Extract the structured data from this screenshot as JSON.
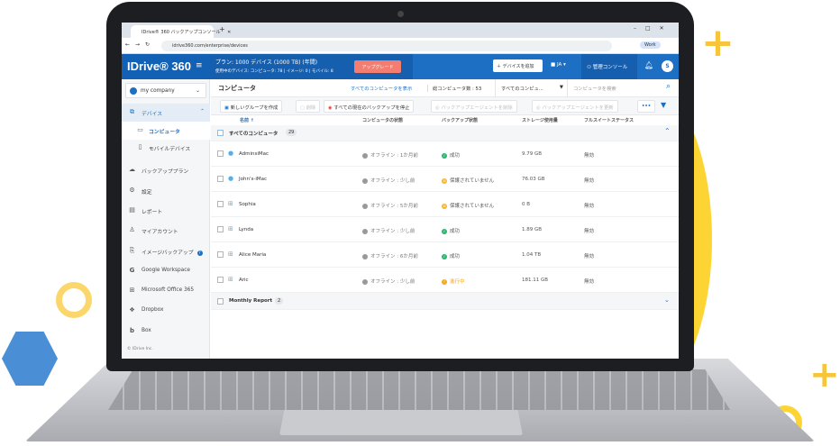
{
  "browser": {
    "tab_title": "IDrive® 360 バックアップコンソール",
    "url": "idrive360.com/enterprise/devices",
    "profile": "Work"
  },
  "header": {
    "logo": "IDrive® 360",
    "plan": "プラン: 1000 デバイス (1000 TB) (年間)",
    "usage": "使用中のデバイス: コンピュータ: 78 | イメージ: 0 | モバイル: 8",
    "upgrade": "アップグレード",
    "add_device": "デバイスを追加",
    "lang": "JA",
    "console": "管理コンソール",
    "avatar": "S"
  },
  "sidebar": {
    "company": "my company",
    "items": [
      {
        "label": "デバイス",
        "icon": "devices-icon"
      },
      {
        "label": "コンピュータ",
        "icon": "monitor-icon"
      },
      {
        "label": "モバイルデバイス",
        "icon": "mobile-icon"
      },
      {
        "label": "バックアッププラン",
        "icon": "cloud-icon"
      },
      {
        "label": "設定",
        "icon": "gear-icon"
      },
      {
        "label": "レポート",
        "icon": "document-icon"
      },
      {
        "label": "マイアカウント",
        "icon": "user-icon"
      },
      {
        "label": "イメージバックアップ",
        "icon": "image-backup-icon"
      },
      {
        "label": "Google Workspace",
        "icon": "google-icon"
      },
      {
        "label": "Microsoft Office 365",
        "icon": "windows-icon"
      },
      {
        "label": "Dropbox",
        "icon": "dropbox-icon"
      },
      {
        "label": "Box",
        "icon": "box-icon"
      }
    ],
    "footer": "© IDrive Inc."
  },
  "main": {
    "title": "コンピュータ",
    "show_all": "すべてのコンピュータを表示",
    "total": "総コンピュータ数 : 53",
    "filter": "すべてのコンピュ...",
    "search_placeholder": "コンピュータを検索",
    "toolbar": {
      "new_group": "新しいグループを作成",
      "delete": "削除",
      "stop_all": "すべての現在のバックアップを停止",
      "remove_agent": "バックアップエージェントを削除",
      "update_agent": "バックアップエージェントを更新",
      "more": "•••"
    },
    "columns": [
      "名前 ↑",
      "コンピュータの状態",
      "バックアップ状態",
      "ストレージ使用量",
      "フルスイートステータス"
    ],
    "group": {
      "name": "すべてのコンピュータ",
      "count": "29"
    },
    "rows": [
      {
        "name": "AdminsiMac",
        "os": "apple",
        "state": "オフライン : 1か月前",
        "backup": "成功",
        "status": "success",
        "storage": "9.79 GB",
        "suite": "無効"
      },
      {
        "name": "John's-iMac",
        "os": "apple",
        "state": "オフライン : 少し前",
        "backup": "保護されていません",
        "status": "unprotected",
        "storage": "76.03 GB",
        "suite": "無効"
      },
      {
        "name": "Sophia",
        "os": "windows",
        "state": "オフライン : 5か月前",
        "backup": "保護されていません",
        "status": "unprotected",
        "storage": "0 B",
        "suite": "無効"
      },
      {
        "name": "Lynda",
        "os": "windows",
        "state": "オフライン : 少し前",
        "backup": "成功",
        "status": "success",
        "storage": "1.89 GB",
        "suite": "無効"
      },
      {
        "name": "Alice Maria",
        "os": "windows",
        "state": "オフライン : 6か月前",
        "backup": "成功",
        "status": "success",
        "storage": "1.04 TB",
        "suite": "無効"
      },
      {
        "name": "Aric",
        "os": "windows",
        "state": "オフライン : 少し前",
        "backup": "進行中",
        "status": "in-progress",
        "storage": "181.11 GB",
        "suite": "無効"
      }
    ],
    "group2": {
      "name": "Monthly Report",
      "count": "2"
    }
  },
  "colors": {
    "brand": "#1d6fc4",
    "success": "#2bb673",
    "warning": "#f5a623",
    "upgrade": "#f37d70",
    "accent_yellow": "#fcd535"
  }
}
